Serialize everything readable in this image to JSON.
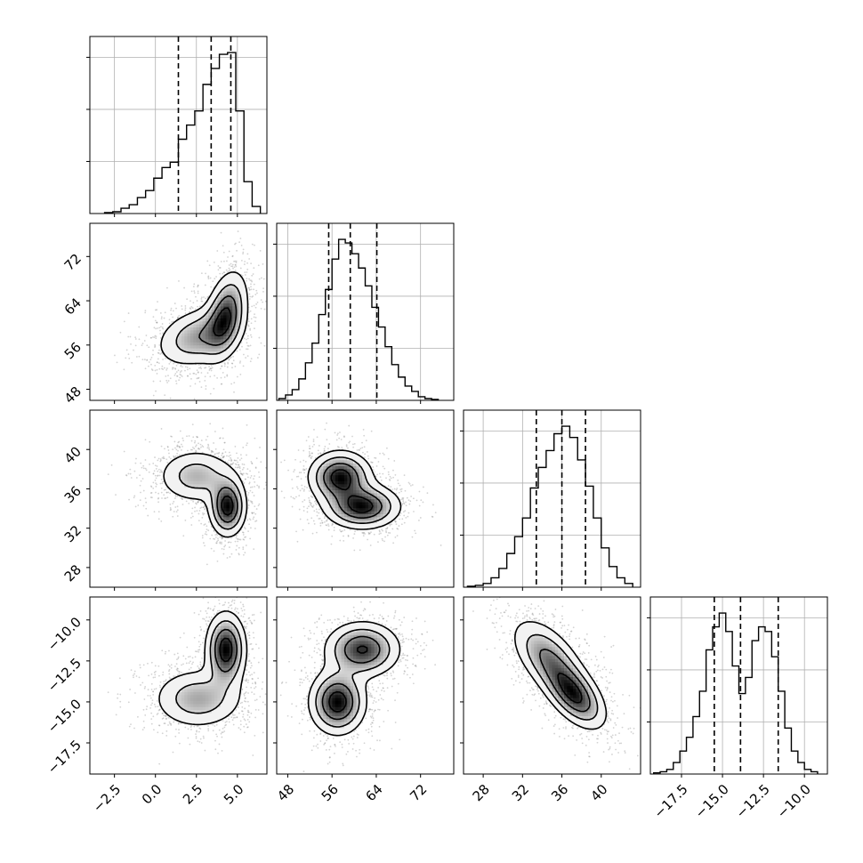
{
  "chart_data": {
    "type": "corner",
    "parameters": [
      {
        "key": "p0",
        "xlim": [
          -4.0,
          6.8
        ],
        "xticks": [
          -2.5,
          0.0,
          2.5,
          5.0
        ],
        "xtick_labels": [
          "−2.5",
          "0.0",
          "2.5",
          "5.0"
        ],
        "quantiles": [
          1.4,
          3.4,
          4.6
        ]
      },
      {
        "key": "p1",
        "xlim": [
          46.0,
          78.0
        ],
        "xticks": [
          48,
          56,
          64,
          72
        ],
        "xtick_labels": [
          "48",
          "56",
          "64",
          "72"
        ],
        "quantiles": [
          55.4,
          59.3,
          64.1
        ]
      },
      {
        "key": "p2",
        "xlim": [
          26.0,
          44.0
        ],
        "xticks": [
          28,
          32,
          36,
          40
        ],
        "xtick_labels": [
          "28",
          "32",
          "36",
          "40"
        ],
        "quantiles": [
          33.4,
          36.0,
          38.4
        ]
      },
      {
        "key": "p3",
        "xlim": [
          -19.4,
          -8.6
        ],
        "xticks": [
          -17.5,
          -15.0,
          -12.5,
          -10.0
        ],
        "xtick_labels": [
          "−17.5",
          "−15.0",
          "−12.5",
          "−10.0"
        ],
        "quantiles": [
          -15.5,
          -13.9,
          -11.6
        ]
      }
    ],
    "histograms": [
      {
        "bin_edges": [
          -3.1,
          -2.6,
          -2.1,
          -1.6,
          -1.1,
          -0.6,
          -0.1,
          0.4,
          0.9,
          1.4,
          1.9,
          2.4,
          2.9,
          3.4,
          3.9,
          4.4,
          4.9,
          5.4,
          5.9,
          6.4
        ],
        "counts": [
          0.005,
          0.01,
          0.03,
          0.05,
          0.09,
          0.13,
          0.2,
          0.26,
          0.29,
          0.42,
          0.5,
          0.58,
          0.73,
          0.82,
          0.9,
          0.91,
          0.58,
          0.18,
          0.04
        ]
      },
      {
        "bin_edges": [
          46.4,
          47.6,
          48.8,
          50.0,
          51.2,
          52.4,
          53.6,
          54.8,
          56.0,
          57.2,
          58.4,
          59.6,
          60.8,
          62.0,
          63.2,
          64.4,
          65.6,
          66.8,
          68.0,
          69.2,
          70.4,
          71.6,
          72.8,
          74.0,
          75.2
        ],
        "counts": [
          0.01,
          0.03,
          0.06,
          0.12,
          0.21,
          0.32,
          0.48,
          0.62,
          0.79,
          0.9,
          0.88,
          0.82,
          0.74,
          0.64,
          0.52,
          0.41,
          0.3,
          0.2,
          0.13,
          0.08,
          0.05,
          0.02,
          0.01,
          0.005
        ]
      },
      {
        "bin_edges": [
          26.4,
          27.2,
          28.0,
          28.8,
          29.6,
          30.4,
          31.2,
          32.0,
          32.8,
          33.6,
          34.4,
          35.2,
          36.0,
          36.8,
          37.6,
          38.4,
          39.2,
          40.0,
          40.8,
          41.6,
          42.4,
          43.2
        ],
        "counts": [
          0.005,
          0.01,
          0.02,
          0.05,
          0.1,
          0.18,
          0.27,
          0.37,
          0.53,
          0.64,
          0.73,
          0.82,
          0.86,
          0.8,
          0.68,
          0.54,
          0.37,
          0.21,
          0.11,
          0.05,
          0.02
        ]
      },
      {
        "bin_edges": [
          -19.2,
          -18.8,
          -18.4,
          -18.0,
          -17.6,
          -17.2,
          -16.8,
          -16.4,
          -16.0,
          -15.6,
          -15.2,
          -14.8,
          -14.4,
          -14.0,
          -13.6,
          -13.2,
          -12.8,
          -12.4,
          -12.0,
          -11.6,
          -11.2,
          -10.8,
          -10.4,
          -10.0,
          -9.6,
          -9.2
        ],
        "counts": [
          0.005,
          0.01,
          0.02,
          0.05,
          0.1,
          0.16,
          0.25,
          0.36,
          0.54,
          0.64,
          0.7,
          0.62,
          0.47,
          0.35,
          0.42,
          0.58,
          0.64,
          0.62,
          0.51,
          0.36,
          0.2,
          0.1,
          0.05,
          0.02,
          0.01
        ]
      }
    ],
    "hist_ticks_per_diag": 3,
    "scatter_blobs": {
      "1,0": [
        {
          "mx": 2.6,
          "my": 57.5,
          "sx": 1.4,
          "sy": 3.0,
          "rho": 0.3,
          "w": 0.5
        },
        {
          "mx": 4.3,
          "my": 61.5,
          "sx": 0.7,
          "sy": 4.2,
          "rho": 0.35,
          "w": 0.5
        }
      ],
      "2,0": [
        {
          "mx": 2.5,
          "my": 37.3,
          "sx": 1.3,
          "sy": 1.5,
          "rho": 0.0,
          "w": 0.5
        },
        {
          "mx": 4.4,
          "my": 34.2,
          "sx": 0.6,
          "sy": 1.6,
          "rho": 0.0,
          "w": 0.5
        }
      ],
      "2,1": [
        {
          "mx": 57.5,
          "my": 37.2,
          "sx": 3.0,
          "sy": 1.4,
          "rho": 0.0,
          "w": 0.5
        },
        {
          "mx": 61.5,
          "my": 34.2,
          "sx": 3.6,
          "sy": 1.2,
          "rho": 0.0,
          "w": 0.5
        }
      ],
      "3,0": [
        {
          "mx": 2.6,
          "my": -14.8,
          "sx": 1.5,
          "sy": 1.0,
          "rho": 0.0,
          "w": 0.5
        },
        {
          "mx": 4.3,
          "my": -11.8,
          "sx": 0.65,
          "sy": 1.2,
          "rho": 0.0,
          "w": 0.5
        }
      ],
      "3,1": [
        {
          "mx": 57.0,
          "my": -15.0,
          "sx": 2.7,
          "sy": 1.05,
          "rho": 0.0,
          "w": 0.5
        },
        {
          "mx": 61.5,
          "my": -11.8,
          "sx": 3.6,
          "sy": 0.9,
          "rho": 0.0,
          "w": 0.5
        }
      ],
      "3,2": [
        {
          "mx": 34.6,
          "my": -12.3,
          "sx": 2.0,
          "sy": 1.3,
          "rho": -0.55,
          "w": 0.5
        },
        {
          "mx": 37.3,
          "my": -14.6,
          "sx": 1.7,
          "sy": 1.1,
          "rho": -0.55,
          "w": 0.5
        }
      ]
    },
    "contour_levels": [
      0.15,
      0.35,
      0.6,
      0.85
    ],
    "grid": true,
    "colors": {
      "line": "#000000",
      "scatter": "#808080",
      "grid": "#b0b0b0",
      "density": "#000000",
      "quantile": "#000000"
    }
  }
}
